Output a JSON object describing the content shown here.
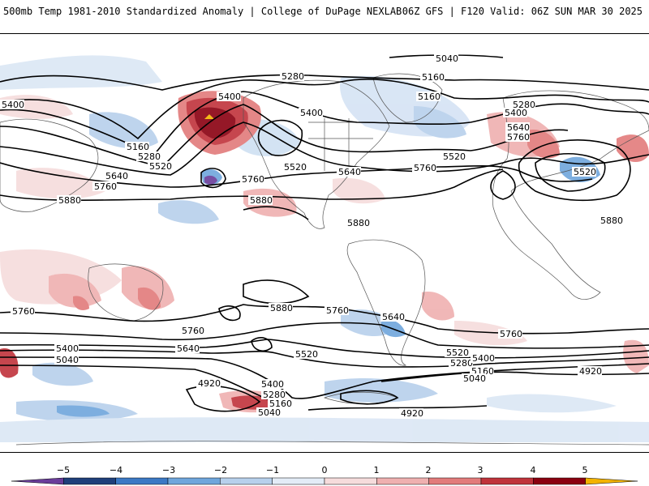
{
  "header": {
    "title_left": "500mb Temp 1981-2010 Standardized Anomaly | College of DuPage NEXLAB",
    "title_right": "06Z GFS | F120 Valid: 06Z SUN MAR 30 2025"
  },
  "map": {
    "contour_labels": [
      {
        "id": "c5040-top",
        "text": "5040"
      },
      {
        "id": "c5160-top",
        "text": "5160"
      },
      {
        "id": "c5280-top",
        "text": "5280"
      },
      {
        "id": "c5400-left",
        "text": "5400"
      },
      {
        "id": "c5400-alaska",
        "text": "5400"
      },
      {
        "id": "c5160-pac",
        "text": "5160"
      },
      {
        "id": "c5280-pac",
        "text": "5280"
      },
      {
        "id": "c5520-pac",
        "text": "5520"
      },
      {
        "id": "c5640-pac",
        "text": "5640"
      },
      {
        "id": "c5760-pac",
        "text": "5760"
      },
      {
        "id": "c5880-asia",
        "text": "5880"
      },
      {
        "id": "c5400-nam",
        "text": "5400"
      },
      {
        "id": "c5520-nam",
        "text": "5520"
      },
      {
        "id": "c5640-us",
        "text": "5640"
      },
      {
        "id": "c5760-hawaii",
        "text": "5760"
      },
      {
        "id": "c5880-pac",
        "text": "5880"
      },
      {
        "id": "c5880-carib",
        "text": "5880"
      },
      {
        "id": "c5160-green",
        "text": "5160"
      },
      {
        "id": "c5520-atl",
        "text": "5520"
      },
      {
        "id": "c5760-atl",
        "text": "5760"
      },
      {
        "id": "c5280-eu",
        "text": "5280"
      },
      {
        "id": "c5400-eu",
        "text": "5400"
      },
      {
        "id": "c5640-eu",
        "text": "5640"
      },
      {
        "id": "c5760-eu",
        "text": "5760"
      },
      {
        "id": "c5520-eu",
        "text": "5520"
      },
      {
        "id": "c5880-africa",
        "text": "5880"
      },
      {
        "id": "c5760-sw",
        "text": "5760"
      },
      {
        "id": "c5880-spac",
        "text": "5880"
      },
      {
        "id": "c5760-spac",
        "text": "5760"
      },
      {
        "id": "c5640-chile",
        "text": "5640"
      },
      {
        "id": "c5760-satl",
        "text": "5760"
      },
      {
        "id": "c5760-aus",
        "text": "5760"
      },
      {
        "id": "c5640-aus",
        "text": "5640"
      },
      {
        "id": "c5400-so",
        "text": "5400"
      },
      {
        "id": "c5040-so",
        "text": "5040"
      },
      {
        "id": "c5520-so",
        "text": "5520"
      },
      {
        "id": "c5520-sa",
        "text": "5520"
      },
      {
        "id": "c5280-sa",
        "text": "5280"
      },
      {
        "id": "c5400-sa",
        "text": "5400"
      },
      {
        "id": "c5160-sa",
        "text": "5160"
      },
      {
        "id": "c5040-sa",
        "text": "5040"
      },
      {
        "id": "c4920-sind",
        "text": "4920"
      },
      {
        "id": "c4920-spac",
        "text": "4920"
      },
      {
        "id": "c5400-spac",
        "text": "5400"
      },
      {
        "id": "c5280-spac",
        "text": "5280"
      },
      {
        "id": "c5160-spac",
        "text": "5160"
      },
      {
        "id": "c5040-spac",
        "text": "5040"
      },
      {
        "id": "c4920-satl",
        "text": "4920"
      }
    ]
  },
  "colorbar": {
    "ticks": [
      "−5",
      "−4",
      "−3",
      "−2",
      "−1",
      "0",
      "1",
      "2",
      "3",
      "4",
      "5"
    ],
    "colors": [
      "#6a3d9a",
      "#1f3f7a",
      "#3b78c4",
      "#6fa6dc",
      "#b7d0ec",
      "#e3ecf7",
      "#f6dcdc",
      "#efb0b0",
      "#e27b7b",
      "#c0333b",
      "#8a0010",
      "#f3b300"
    ]
  }
}
